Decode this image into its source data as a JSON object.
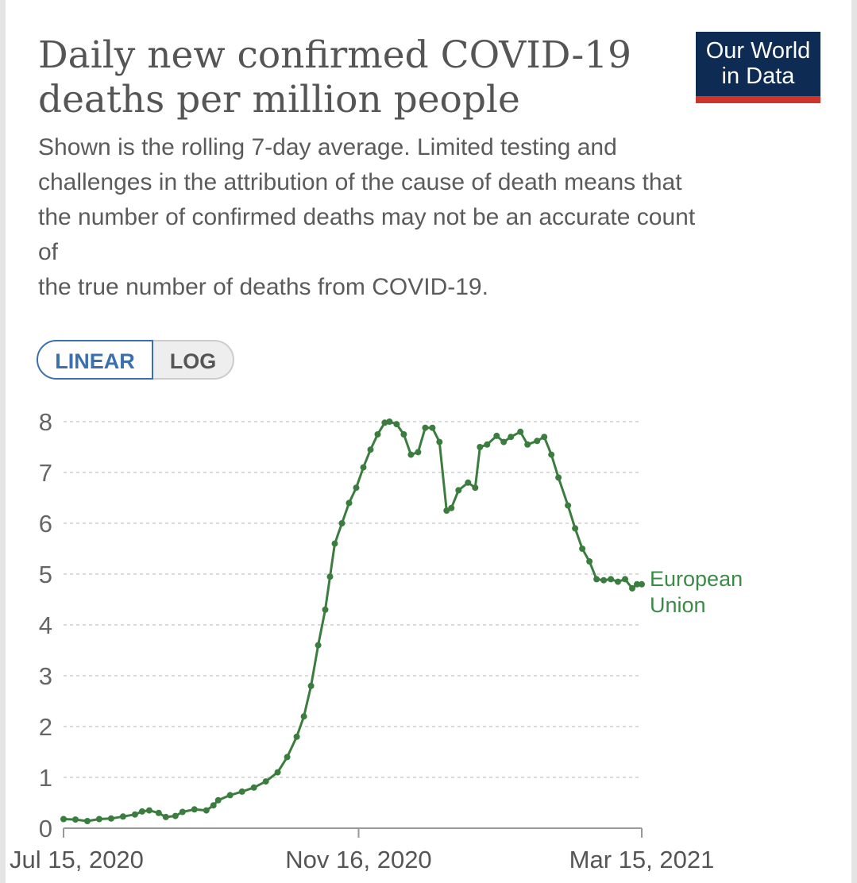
{
  "header": {
    "title_lines": [
      "Daily new confirmed COVID-19",
      "deaths per million people"
    ],
    "subtitle_lines": [
      "Shown is the rolling 7-day average. Limited testing and",
      "challenges in the attribution of the cause of death means that",
      "the number of confirmed deaths may not be an accurate count",
      "of",
      "the true number of deaths from COVID-19."
    ]
  },
  "logo": {
    "lines": [
      "Our World",
      "in Data"
    ],
    "background": "#0d2b53",
    "accent": "#cc3527"
  },
  "scale_toggle": {
    "linear_label": "LINEAR",
    "log_label": "LOG",
    "selected": "LINEAR"
  },
  "chart_data": {
    "type": "line",
    "title": "Daily new confirmed COVID-19 deaths per million people",
    "xlabel": "",
    "ylabel": "",
    "x_ticks": [
      "Jul 15, 2020",
      "Nov 16, 2020",
      "Mar 15, 2021"
    ],
    "x_tick_days": [
      0,
      124,
      243
    ],
    "y_ticks": [
      0,
      1,
      2,
      3,
      4,
      5,
      6,
      7,
      8
    ],
    "ylim": [
      0,
      8
    ],
    "xlim": [
      0,
      243
    ],
    "grid": true,
    "series": [
      {
        "name": "European Union",
        "label_lines": [
          "European",
          "Union"
        ],
        "color": "#3b7d3e",
        "points": [
          [
            0,
            0.18
          ],
          [
            5,
            0.17
          ],
          [
            10,
            0.14
          ],
          [
            15,
            0.18
          ],
          [
            20,
            0.19
          ],
          [
            25,
            0.23
          ],
          [
            30,
            0.27
          ],
          [
            33,
            0.33
          ],
          [
            36,
            0.35
          ],
          [
            40,
            0.3
          ],
          [
            43,
            0.22
          ],
          [
            47,
            0.24
          ],
          [
            50,
            0.32
          ],
          [
            55,
            0.37
          ],
          [
            60,
            0.35
          ],
          [
            63,
            0.45
          ],
          [
            65,
            0.55
          ],
          [
            70,
            0.65
          ],
          [
            75,
            0.72
          ],
          [
            80,
            0.8
          ],
          [
            85,
            0.92
          ],
          [
            90,
            1.1
          ],
          [
            94,
            1.4
          ],
          [
            98,
            1.8
          ],
          [
            101,
            2.2
          ],
          [
            104,
            2.8
          ],
          [
            107,
            3.6
          ],
          [
            110,
            4.3
          ],
          [
            112,
            4.95
          ],
          [
            114,
            5.6
          ],
          [
            117,
            6.0
          ],
          [
            120,
            6.4
          ],
          [
            123,
            6.7
          ],
          [
            126,
            7.1
          ],
          [
            129,
            7.45
          ],
          [
            132,
            7.75
          ],
          [
            135,
            7.98
          ],
          [
            137,
            8.0
          ],
          [
            140,
            7.95
          ],
          [
            143,
            7.75
          ],
          [
            146,
            7.35
          ],
          [
            149,
            7.4
          ],
          [
            152,
            7.88
          ],
          [
            155,
            7.88
          ],
          [
            158,
            7.6
          ],
          [
            161,
            6.25
          ],
          [
            163,
            6.3
          ],
          [
            166,
            6.65
          ],
          [
            170,
            6.8
          ],
          [
            173,
            6.7
          ],
          [
            175,
            7.5
          ],
          [
            178,
            7.55
          ],
          [
            182,
            7.72
          ],
          [
            185,
            7.6
          ],
          [
            188,
            7.7
          ],
          [
            192,
            7.8
          ],
          [
            195,
            7.55
          ],
          [
            199,
            7.62
          ],
          [
            202,
            7.7
          ],
          [
            205,
            7.35
          ],
          [
            208,
            6.9
          ],
          [
            212,
            6.35
          ],
          [
            215,
            5.9
          ],
          [
            218,
            5.5
          ],
          [
            221,
            5.25
          ],
          [
            224,
            4.9
          ],
          [
            227,
            4.88
          ],
          [
            230,
            4.9
          ],
          [
            233,
            4.85
          ],
          [
            236,
            4.9
          ],
          [
            239,
            4.72
          ],
          [
            241,
            4.8
          ],
          [
            243,
            4.8
          ]
        ]
      }
    ]
  }
}
